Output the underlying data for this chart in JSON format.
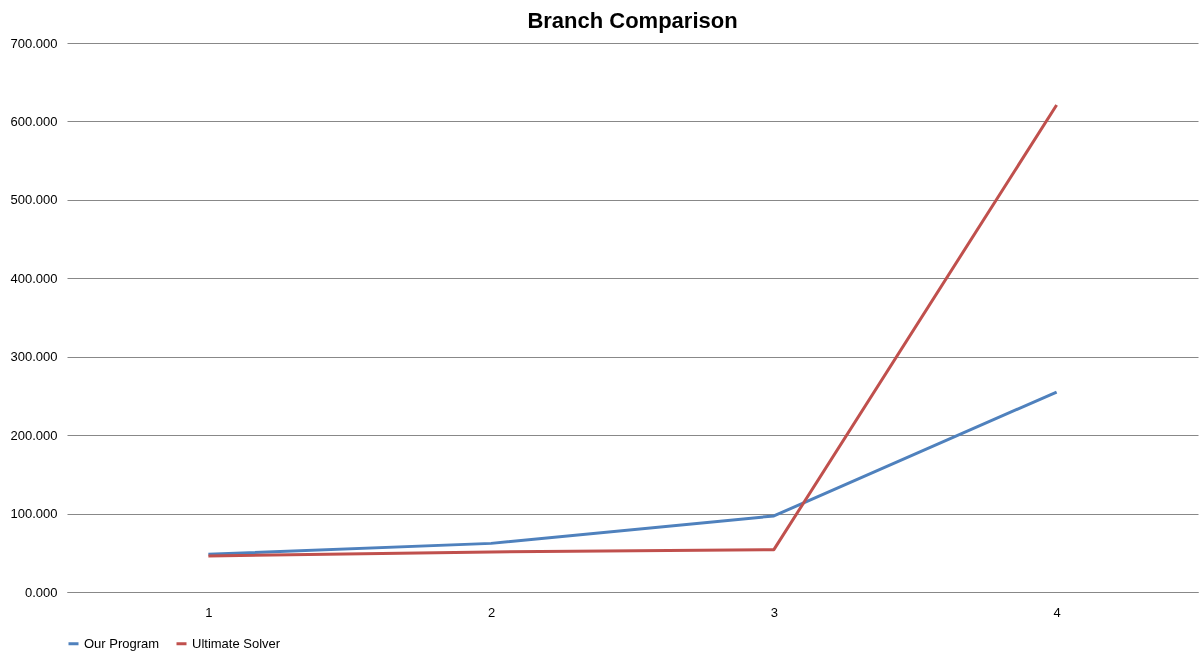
{
  "chart_data": {
    "type": "line",
    "title": "Branch Comparison",
    "categories": [
      "1",
      "2",
      "3",
      "4"
    ],
    "series": [
      {
        "name": "Our Program",
        "color": "#4f81bd",
        "values": [
          48,
          62,
          97,
          255
        ]
      },
      {
        "name": "Ultimate Solver",
        "color": "#c0504d",
        "values": [
          46,
          51,
          54,
          621
        ]
      }
    ],
    "ylim": [
      0,
      700
    ],
    "yticks": [
      {
        "value": 0,
        "label": "0.000"
      },
      {
        "value": 100,
        "label": "100.000"
      },
      {
        "value": 200,
        "label": "200.000"
      },
      {
        "value": 300,
        "label": "300.000"
      },
      {
        "value": 400,
        "label": "400.000"
      },
      {
        "value": 500,
        "label": "500.000"
      },
      {
        "value": 600,
        "label": "600.000"
      },
      {
        "value": 700,
        "label": "700.000"
      }
    ],
    "grid": "y",
    "legend": "bottom",
    "marker": "none",
    "line_style": "solid"
  }
}
